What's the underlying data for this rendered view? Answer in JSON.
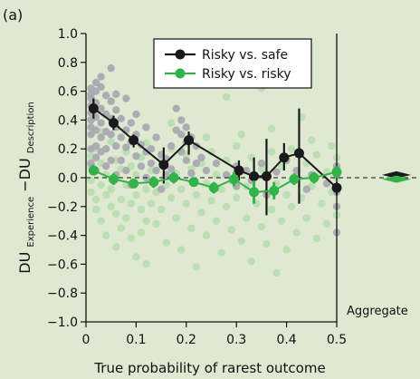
{
  "chart_data": {
    "panel_label": "(a)",
    "type": "scatter",
    "xlabel": "True probability of rarest outcome",
    "ylabel": {
      "main_du_1": "DU",
      "sub_1": "Experience",
      "minus": "−DU",
      "sub_2": "Description"
    },
    "xlim": [
      0,
      0.5
    ],
    "ylim": [
      -1.0,
      1.0
    ],
    "x_ticks": [
      "0",
      "0.1",
      "0.2",
      "0.3",
      "0.4",
      "0.5"
    ],
    "y_ticks": [
      "1.0",
      "0.8",
      "0.6",
      "0.4",
      "0.2",
      "0.0",
      "−0.2",
      "−0.4",
      "−0.6",
      "−0.8",
      "−1.0"
    ],
    "reference_line_y": 0,
    "aggregate_label": "Aggregate",
    "colors": {
      "risky_safe": "#1a1a1a",
      "risky_risky": "#33b24a",
      "scatter_gray": "#a6a6b0",
      "scatter_green": "#b6dcae",
      "background": "#dfe9d1"
    },
    "series": [
      {
        "name": "Risky vs. safe",
        "color": "#1a1a1a",
        "x": [
          0.015,
          0.055,
          0.095,
          0.155,
          0.205,
          0.305,
          0.335,
          0.36,
          0.395,
          0.425,
          0.5
        ],
        "y": [
          0.48,
          0.38,
          0.26,
          0.09,
          0.26,
          0.05,
          0.01,
          0.01,
          0.14,
          0.17,
          -0.07
        ],
        "err_low": [
          0.41,
          0.33,
          0.21,
          -0.04,
          0.16,
          -0.02,
          -0.13,
          -0.26,
          0.05,
          -0.18,
          -0.12
        ],
        "err_high": [
          0.55,
          0.43,
          0.3,
          0.21,
          0.32,
          0.12,
          0.14,
          0.27,
          0.24,
          0.48,
          -0.03
        ],
        "aggregate": 0.02
      },
      {
        "name": "Risky vs. risky",
        "color": "#33b24a",
        "x": [
          0.015,
          0.055,
          0.095,
          0.135,
          0.175,
          0.215,
          0.255,
          0.295,
          0.335,
          0.375,
          0.415,
          0.455,
          0.5
        ],
        "y": [
          0.05,
          -0.01,
          -0.04,
          -0.03,
          0.0,
          -0.03,
          -0.07,
          -0.01,
          -0.1,
          -0.09,
          -0.01,
          0.0,
          0.04
        ],
        "err_low": [
          0.02,
          -0.05,
          -0.07,
          -0.07,
          -0.04,
          -0.06,
          -0.11,
          -0.06,
          -0.18,
          -0.15,
          -0.05,
          -0.04,
          0.0
        ],
        "err_high": [
          0.09,
          0.03,
          -0.01,
          0.01,
          0.04,
          0.0,
          -0.03,
          0.04,
          -0.02,
          -0.03,
          0.03,
          0.04,
          0.08
        ],
        "aggregate": -0.01
      }
    ],
    "background_points_gray": [
      [
        0.01,
        0.62
      ],
      [
        0.01,
        0.55
      ],
      [
        0.01,
        0.5
      ],
      [
        0.01,
        0.45
      ],
      [
        0.01,
        0.4
      ],
      [
        0.01,
        0.35
      ],
      [
        0.01,
        0.3
      ],
      [
        0.01,
        0.58
      ],
      [
        0.01,
        0.2
      ],
      [
        0.01,
        0.1
      ],
      [
        0.02,
        0.6
      ],
      [
        0.02,
        0.52
      ],
      [
        0.02,
        0.42
      ],
      [
        0.02,
        0.33
      ],
      [
        0.02,
        0.22
      ],
      [
        0.02,
        0.14
      ],
      [
        0.02,
        0.05
      ],
      [
        0.02,
        0.66
      ],
      [
        0.03,
        0.63
      ],
      [
        0.03,
        0.48
      ],
      [
        0.03,
        0.38
      ],
      [
        0.03,
        0.28
      ],
      [
        0.03,
        0.18
      ],
      [
        0.04,
        0.57
      ],
      [
        0.04,
        0.44
      ],
      [
        0.04,
        0.32
      ],
      [
        0.04,
        0.2
      ],
      [
        0.04,
        0.08
      ],
      [
        0.05,
        0.53
      ],
      [
        0.05,
        0.41
      ],
      [
        0.05,
        0.3
      ],
      [
        0.05,
        0.12
      ],
      [
        0.05,
        0.76
      ],
      [
        0.06,
        0.47
      ],
      [
        0.06,
        0.35
      ],
      [
        0.06,
        0.22
      ],
      [
        0.06,
        0.02
      ],
      [
        0.07,
        0.41
      ],
      [
        0.07,
        0.28
      ],
      [
        0.07,
        0.12
      ],
      [
        0.08,
        0.55
      ],
      [
        0.08,
        0.33
      ],
      [
        0.08,
        0.21
      ],
      [
        0.08,
        0.05
      ],
      [
        0.09,
        0.38
      ],
      [
        0.09,
        0.25
      ],
      [
        0.09,
        -0.05
      ],
      [
        0.1,
        0.3
      ],
      [
        0.1,
        0.15
      ],
      [
        0.1,
        0.44
      ],
      [
        0.11,
        0.23
      ],
      [
        0.11,
        0.08
      ],
      [
        0.12,
        0.35
      ],
      [
        0.12,
        0.18
      ],
      [
        0.12,
        0.0
      ],
      [
        0.13,
        0.2
      ],
      [
        0.13,
        0.1
      ],
      [
        0.14,
        0.28
      ],
      [
        0.14,
        0.05
      ],
      [
        0.15,
        0.16
      ],
      [
        0.15,
        -0.08
      ],
      [
        0.16,
        0.13
      ],
      [
        0.16,
        0.02
      ],
      [
        0.17,
        0.22
      ],
      [
        0.17,
        0.06
      ],
      [
        0.18,
        0.48
      ],
      [
        0.18,
        0.33
      ],
      [
        0.19,
        0.4
      ],
      [
        0.19,
        0.3
      ],
      [
        0.19,
        0.18
      ],
      [
        0.2,
        0.35
      ],
      [
        0.2,
        0.25
      ],
      [
        0.2,
        0.12
      ],
      [
        0.21,
        0.28
      ],
      [
        0.21,
        0.03
      ],
      [
        0.22,
        0.22
      ],
      [
        0.22,
        0.1
      ],
      [
        0.23,
        0.14
      ],
      [
        0.24,
        0.05
      ],
      [
        0.26,
        0.1
      ],
      [
        0.28,
        0.02
      ],
      [
        0.3,
        0.08
      ],
      [
        0.3,
        -0.06
      ],
      [
        0.32,
        0.05
      ],
      [
        0.33,
        -0.02
      ],
      [
        0.35,
        0.1
      ],
      [
        0.36,
        -0.12
      ],
      [
        0.38,
        0.04
      ],
      [
        0.4,
        0.12
      ],
      [
        0.42,
        0.05
      ],
      [
        0.44,
        -0.08
      ],
      [
        0.45,
        0.02
      ],
      [
        0.48,
        -0.04
      ],
      [
        0.5,
        -0.1
      ],
      [
        0.5,
        -0.2
      ],
      [
        0.5,
        -0.38
      ],
      [
        0.5,
        0.02
      ],
      [
        0.5,
        0.08
      ],
      [
        0.03,
        0.7
      ],
      [
        0.06,
        0.58
      ]
    ],
    "background_points_green": [
      [
        0.01,
        0.15
      ],
      [
        0.01,
        0.08
      ],
      [
        0.01,
        -0.02
      ],
      [
        0.01,
        -0.1
      ],
      [
        0.02,
        0.2
      ],
      [
        0.02,
        -0.15
      ],
      [
        0.02,
        -0.22
      ],
      [
        0.03,
        0.1
      ],
      [
        0.03,
        -0.05
      ],
      [
        0.03,
        -0.3
      ],
      [
        0.04,
        0.02
      ],
      [
        0.04,
        -0.12
      ],
      [
        0.04,
        -0.4
      ],
      [
        0.05,
        0.25
      ],
      [
        0.05,
        -0.08
      ],
      [
        0.05,
        -0.2
      ],
      [
        0.06,
        0.12
      ],
      [
        0.06,
        -0.25
      ],
      [
        0.06,
        -0.48
      ],
      [
        0.07,
        0.06
      ],
      [
        0.07,
        -0.15
      ],
      [
        0.07,
        -0.35
      ],
      [
        0.08,
        0.18
      ],
      [
        0.08,
        -0.05
      ],
      [
        0.08,
        -0.28
      ],
      [
        0.09,
        0.08
      ],
      [
        0.09,
        -0.18
      ],
      [
        0.09,
        -0.42
      ],
      [
        0.1,
        0.02
      ],
      [
        0.1,
        -0.12
      ],
      [
        0.1,
        -0.55
      ],
      [
        0.11,
        0.14
      ],
      [
        0.11,
        -0.22
      ],
      [
        0.11,
        -0.38
      ],
      [
        0.12,
        -0.08
      ],
      [
        0.12,
        -0.3
      ],
      [
        0.12,
        -0.6
      ],
      [
        0.13,
        0.05
      ],
      [
        0.13,
        -0.18
      ],
      [
        0.14,
        -0.1
      ],
      [
        0.14,
        -0.32
      ],
      [
        0.15,
        0.12
      ],
      [
        0.15,
        -0.22
      ],
      [
        0.16,
        -0.05
      ],
      [
        0.16,
        -0.45
      ],
      [
        0.17,
        0.2
      ],
      [
        0.17,
        -0.14
      ],
      [
        0.18,
        0.03
      ],
      [
        0.18,
        -0.28
      ],
      [
        0.19,
        -0.08
      ],
      [
        0.19,
        -0.5
      ],
      [
        0.2,
        0.16
      ],
      [
        0.2,
        -0.18
      ],
      [
        0.21,
        0.06
      ],
      [
        0.21,
        -0.35
      ],
      [
        0.22,
        -0.12
      ],
      [
        0.22,
        -0.62
      ],
      [
        0.23,
        0.1
      ],
      [
        0.23,
        -0.24
      ],
      [
        0.24,
        -0.04
      ],
      [
        0.24,
        -0.4
      ],
      [
        0.25,
        0.18
      ],
      [
        0.25,
        -0.16
      ],
      [
        0.26,
        0.02
      ],
      [
        0.26,
        -0.3
      ],
      [
        0.27,
        -0.08
      ],
      [
        0.27,
        -0.52
      ],
      [
        0.28,
        0.12
      ],
      [
        0.28,
        -0.2
      ],
      [
        0.29,
        -0.02
      ],
      [
        0.29,
        -0.36
      ],
      [
        0.3,
        0.22
      ],
      [
        0.3,
        -0.14
      ],
      [
        0.31,
        0.04
      ],
      [
        0.31,
        -0.44
      ],
      [
        0.32,
        -0.06
      ],
      [
        0.32,
        -0.28
      ],
      [
        0.33,
        0.14
      ],
      [
        0.33,
        -0.58
      ],
      [
        0.34,
        -0.18
      ],
      [
        0.35,
        0.06
      ],
      [
        0.35,
        -0.34
      ],
      [
        0.36,
        -0.1
      ],
      [
        0.36,
        -0.46
      ],
      [
        0.37,
        0.18
      ],
      [
        0.37,
        -0.22
      ],
      [
        0.38,
        -0.04
      ],
      [
        0.38,
        -0.66
      ],
      [
        0.39,
        0.08
      ],
      [
        0.39,
        -0.3
      ],
      [
        0.4,
        -0.12
      ],
      [
        0.4,
        -0.5
      ],
      [
        0.41,
        0.2
      ],
      [
        0.41,
        -0.2
      ],
      [
        0.42,
        0.0
      ],
      [
        0.42,
        -0.38
      ],
      [
        0.43,
        -0.14
      ],
      [
        0.44,
        0.1
      ],
      [
        0.44,
        -0.28
      ],
      [
        0.45,
        -0.06
      ],
      [
        0.46,
        0.16
      ],
      [
        0.46,
        -0.42
      ],
      [
        0.47,
        -0.18
      ],
      [
        0.48,
        0.04
      ],
      [
        0.48,
        -0.32
      ],
      [
        0.49,
        0.22
      ],
      [
        0.49,
        -0.1
      ],
      [
        0.5,
        0.14
      ],
      [
        0.5,
        -0.26
      ],
      [
        0.5,
        0.0
      ],
      [
        0.24,
        0.28
      ],
      [
        0.31,
        0.3
      ],
      [
        0.37,
        0.34
      ],
      [
        0.43,
        0.42
      ],
      [
        0.28,
        0.56
      ],
      [
        0.17,
        0.38
      ],
      [
        0.35,
        0.62
      ],
      [
        0.45,
        0.26
      ],
      [
        0.12,
        0.24
      ],
      [
        0.03,
        0.32
      ]
    ]
  }
}
